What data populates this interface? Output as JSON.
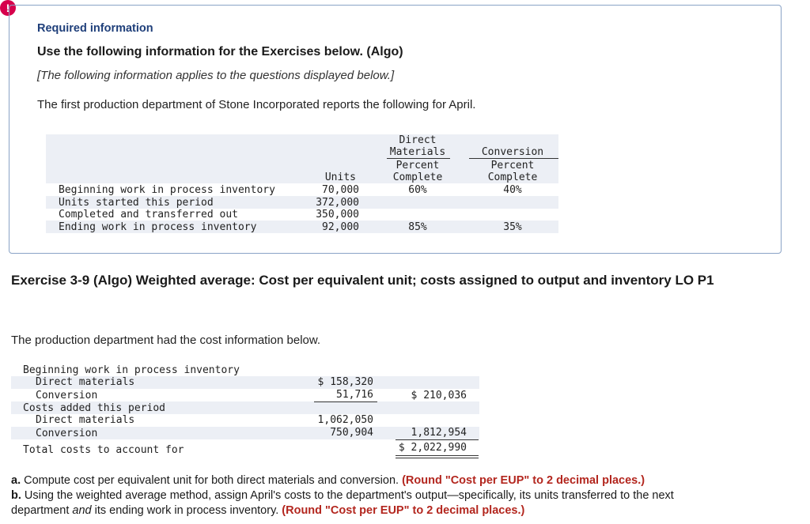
{
  "alert_icon": "!",
  "info": {
    "heading": "Required information",
    "instruction": "Use the following information for the Exercises below. (Algo)",
    "note": "[The following information applies to the questions displayed below.]",
    "intro": "The first production department of Stone Incorporated reports the following for April."
  },
  "units_table": {
    "headers": {
      "units": "Units",
      "dm_1": "Direct",
      "dm_2": "Materials",
      "dm_3": "Percent",
      "dm_4": "Complete",
      "cv_1": "Conversion",
      "cv_2": "Percent",
      "cv_3": "Complete"
    },
    "rows": [
      {
        "label": "Beginning work in process inventory",
        "units": "70,000",
        "dm": "60%",
        "cv": "40%"
      },
      {
        "label": "Units started this period",
        "units": "372,000",
        "dm": "",
        "cv": ""
      },
      {
        "label": "Completed and transferred out",
        "units": "350,000",
        "dm": "",
        "cv": ""
      },
      {
        "label": "Ending work in process inventory",
        "units": "92,000",
        "dm": "85%",
        "cv": "35%"
      }
    ]
  },
  "exercise": {
    "title": "Exercise 3-9 (Algo) Weighted average: Cost per equivalent unit; costs assigned to output and inventory LO P1",
    "cost_intro": "The production department had the cost information below."
  },
  "cost_table": {
    "bwip_label": "Beginning work in process inventory",
    "bwip_dm_label": "Direct materials",
    "bwip_dm_value": "$ 158,320",
    "bwip_cv_label": "Conversion",
    "bwip_cv_value": "51,716",
    "bwip_total": "$ 210,036",
    "added_label": "Costs added this period",
    "added_dm_label": "Direct materials",
    "added_dm_value": "1,062,050",
    "added_cv_label": "Conversion",
    "added_cv_value": "750,904",
    "added_total": "1,812,954",
    "total_label": "Total costs to account for",
    "total_value": "$ 2,022,990"
  },
  "questions": {
    "a_prefix": "a.",
    "a_text": " Compute cost per equivalent unit for both direct materials and conversion. ",
    "a_note": "(Round \"Cost per EUP\" to 2 decimal places.)",
    "b_prefix": "b.",
    "b_text_1": " Using the weighted average method, assign April's costs to the department's output—specifically, its units transferred to the next",
    "b_text_2": "department ",
    "b_and": "and",
    "b_text_3": " its ending work in process inventory. ",
    "b_note": "(Round \"Cost per EUP\" to 2 decimal places.)"
  }
}
